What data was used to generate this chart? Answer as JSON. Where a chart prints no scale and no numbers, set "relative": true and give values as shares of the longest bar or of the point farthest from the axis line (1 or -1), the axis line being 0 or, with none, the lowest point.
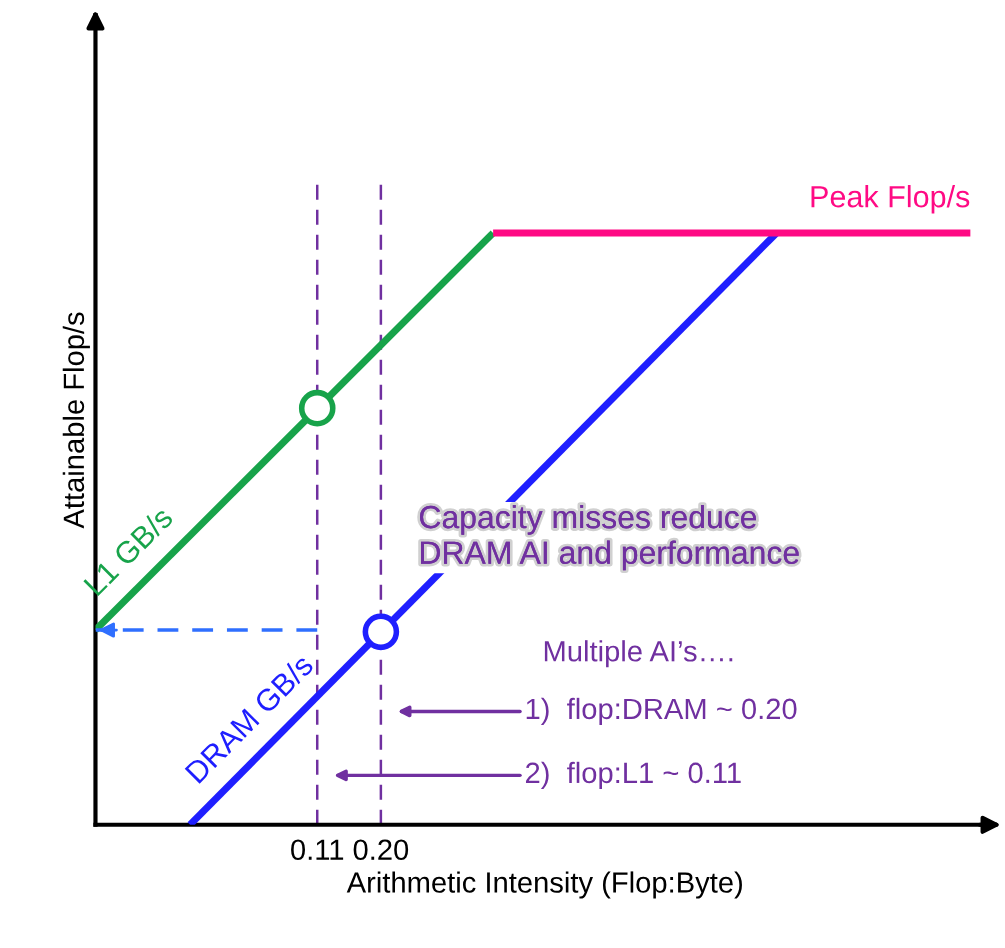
{
  "chart_data": {
    "type": "line",
    "relative": true,
    "log": "x",
    "xlabel": "Arithmetic Intensity (Flop:Byte)",
    "ylabel": "Attainable Flop/s",
    "xlim": [
      0.0137,
      64
    ],
    "xticks": [
      0.11,
      {
        "value": 0.2,
        "label": "0.20"
      }
    ],
    "grid": false,
    "legend": false,
    "line_style": "solid",
    "series": [
      {
        "name": "L1 GB/s",
        "color": "#17a34a",
        "x": [
          0.0137,
          0.574
        ],
        "values": [
          0.329,
          1
        ]
      },
      {
        "name": "DRAM GB/s",
        "color": "#1f1fff",
        "x": [
          0.0333,
          8.23
        ],
        "values": [
          0,
          1
        ]
      },
      {
        "name": "Peak Flop/s",
        "color": "#ff0a84",
        "x": [
          0.574,
          50.8
        ],
        "values": [
          1,
          1
        ]
      },
      {
        "type": "scatter",
        "color": "#17a34a",
        "marker": "circle",
        "x": [
          0.11
        ],
        "values": [
          0.704
        ]
      },
      {
        "type": "scatter",
        "color": "#1f1fff",
        "marker": "circle",
        "x": [
          0.2
        ],
        "values": [
          0.326
        ]
      },
      {
        "color": "#2f6fff",
        "line_style": "dashed",
        "x": [
          0.11,
          0.0137
        ],
        "values": [
          0.329,
          0.329
        ]
      }
    ],
    "ref_lines": [
      {
        "axis": "x",
        "value": 0.11,
        "color": "#7030a0",
        "line_style": "dashed"
      },
      {
        "axis": "x",
        "value": 0.2,
        "color": "#7030a0",
        "line_style": "dashed"
      }
    ],
    "annotations": [
      "Capacity misses reduce\nDRAM AI and performance",
      "Multiple AI’s….",
      "1)  flop:DRAM ~ 0.20",
      "2)  flop:L1 ~ 0.11"
    ]
  }
}
